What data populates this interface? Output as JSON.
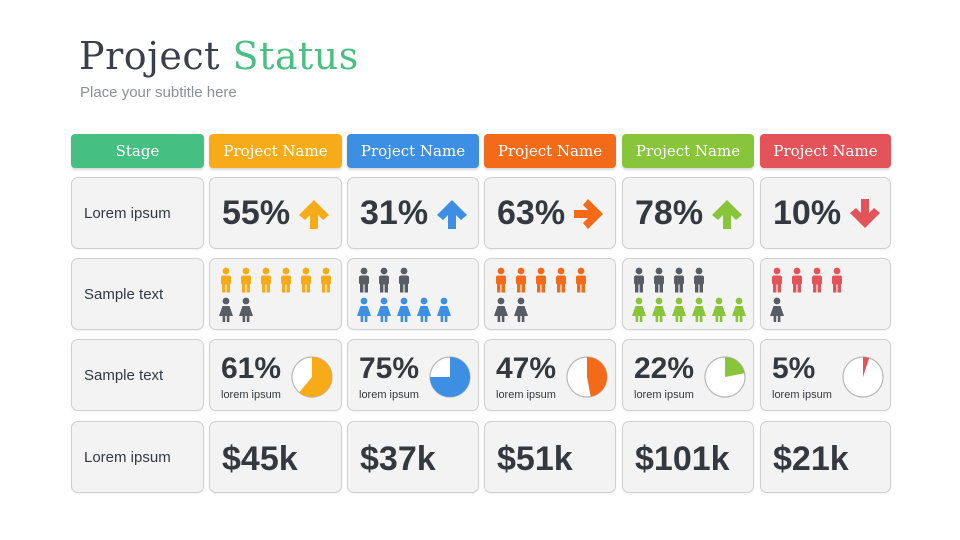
{
  "title": {
    "main": "Project",
    "accent": "Status"
  },
  "subtitle": "Place your subtitle here",
  "stage_header": {
    "label": "Stage",
    "color": "#45bf82"
  },
  "row_labels": [
    "Lorem ipsum",
    "Sample text",
    "Sample text",
    "Lorem ipsum"
  ],
  "projects": [
    {
      "name": "Project Name",
      "color": "#f7ab18",
      "percent": "55%",
      "arrow": "arrow-up-icon",
      "people_dark": 6,
      "people_color": 2,
      "people_color_label": "men",
      "pie_value": 61,
      "pie_label": "61%",
      "pie_caption": "lorem ipsum",
      "amount": "$45k"
    },
    {
      "name": "Project Name",
      "color": "#3d8fe3",
      "percent": "31%",
      "arrow": "arrow-up-icon",
      "people_dark": 3,
      "people_color": 5,
      "pie_value": 75,
      "pie_label": "75%",
      "pie_caption": "lorem ipsum",
      "amount": "$37k"
    },
    {
      "name": "Project Name",
      "color": "#f36a18",
      "percent": "63%",
      "arrow": "arrow-right-icon",
      "people_dark": 5,
      "people_color": 2,
      "pie_value": 47,
      "pie_label": "47%",
      "pie_caption": "lorem ipsum",
      "amount": "$51k"
    },
    {
      "name": "Project Name",
      "color": "#88c53a",
      "percent": "78%",
      "arrow": "arrow-up-icon",
      "people_dark": 4,
      "people_color": 6,
      "pie_value": 22,
      "pie_label": "22%",
      "pie_caption": "lorem ipsum",
      "amount": "$101k"
    },
    {
      "name": "Project Name",
      "color": "#e2535a",
      "percent": "10%",
      "arrow": "arrow-down-icon",
      "people_dark": 4,
      "people_color": 1,
      "pie_value": 5,
      "pie_label": "5%",
      "pie_caption": "lorem ipsum",
      "amount": "$21k"
    }
  ]
}
